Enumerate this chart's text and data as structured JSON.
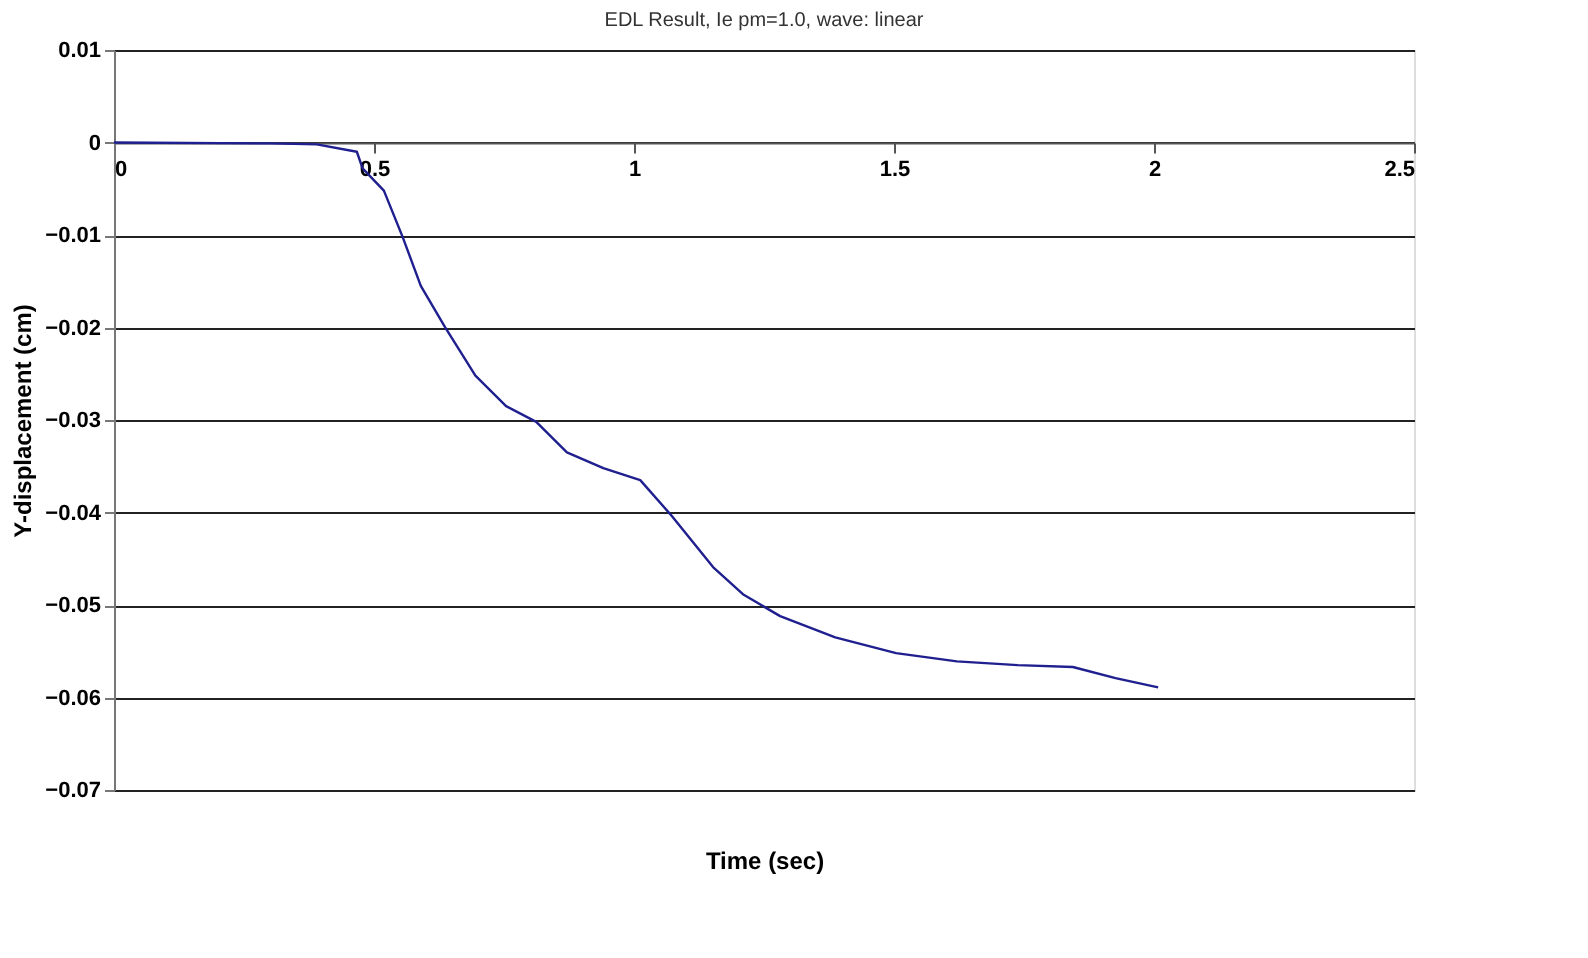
{
  "chart_data": {
    "type": "line",
    "title": "EDL Result, Ie pm=1.0, wave: linear",
    "xlabel": "Time (sec)",
    "ylabel": "Y-displacement (cm)",
    "series": [
      {
        "color": "#1f1f8f",
        "x": [
          0,
          0.3,
          0.39,
          0.467,
          0.478,
          0.519,
          0.555,
          0.59,
          0.636,
          0.695,
          0.754,
          0.812,
          0.871,
          0.941,
          1.012,
          1.07,
          1.152,
          1.211,
          1.281,
          1.387,
          1.504,
          1.621,
          1.738,
          1.844,
          1.926,
          2.008
        ],
        "values": [
          0,
          -0.0001,
          -0.0002,
          -0.001,
          -0.0028,
          -0.0052,
          -0.0102,
          -0.0155,
          -0.0199,
          -0.0252,
          -0.0285,
          -0.0302,
          -0.0335,
          -0.0352,
          -0.0365,
          -0.0402,
          -0.0459,
          -0.0489,
          -0.0512,
          -0.0535,
          -0.0552,
          -0.0561,
          -0.0565,
          -0.0567,
          -0.0579,
          -0.0589
        ]
      }
    ],
    "xlim": [
      0,
      2.5
    ],
    "xticks": [
      0,
      0.5,
      1,
      1.5,
      2,
      2.5
    ],
    "ylim": [
      -0.07,
      0.01
    ],
    "yticks": [
      -0.07,
      -0.06,
      -0.05,
      -0.04,
      -0.03,
      -0.02,
      -0.01,
      0,
      0.01
    ],
    "grid": "y",
    "marker": "none",
    "line_style": "solid"
  }
}
